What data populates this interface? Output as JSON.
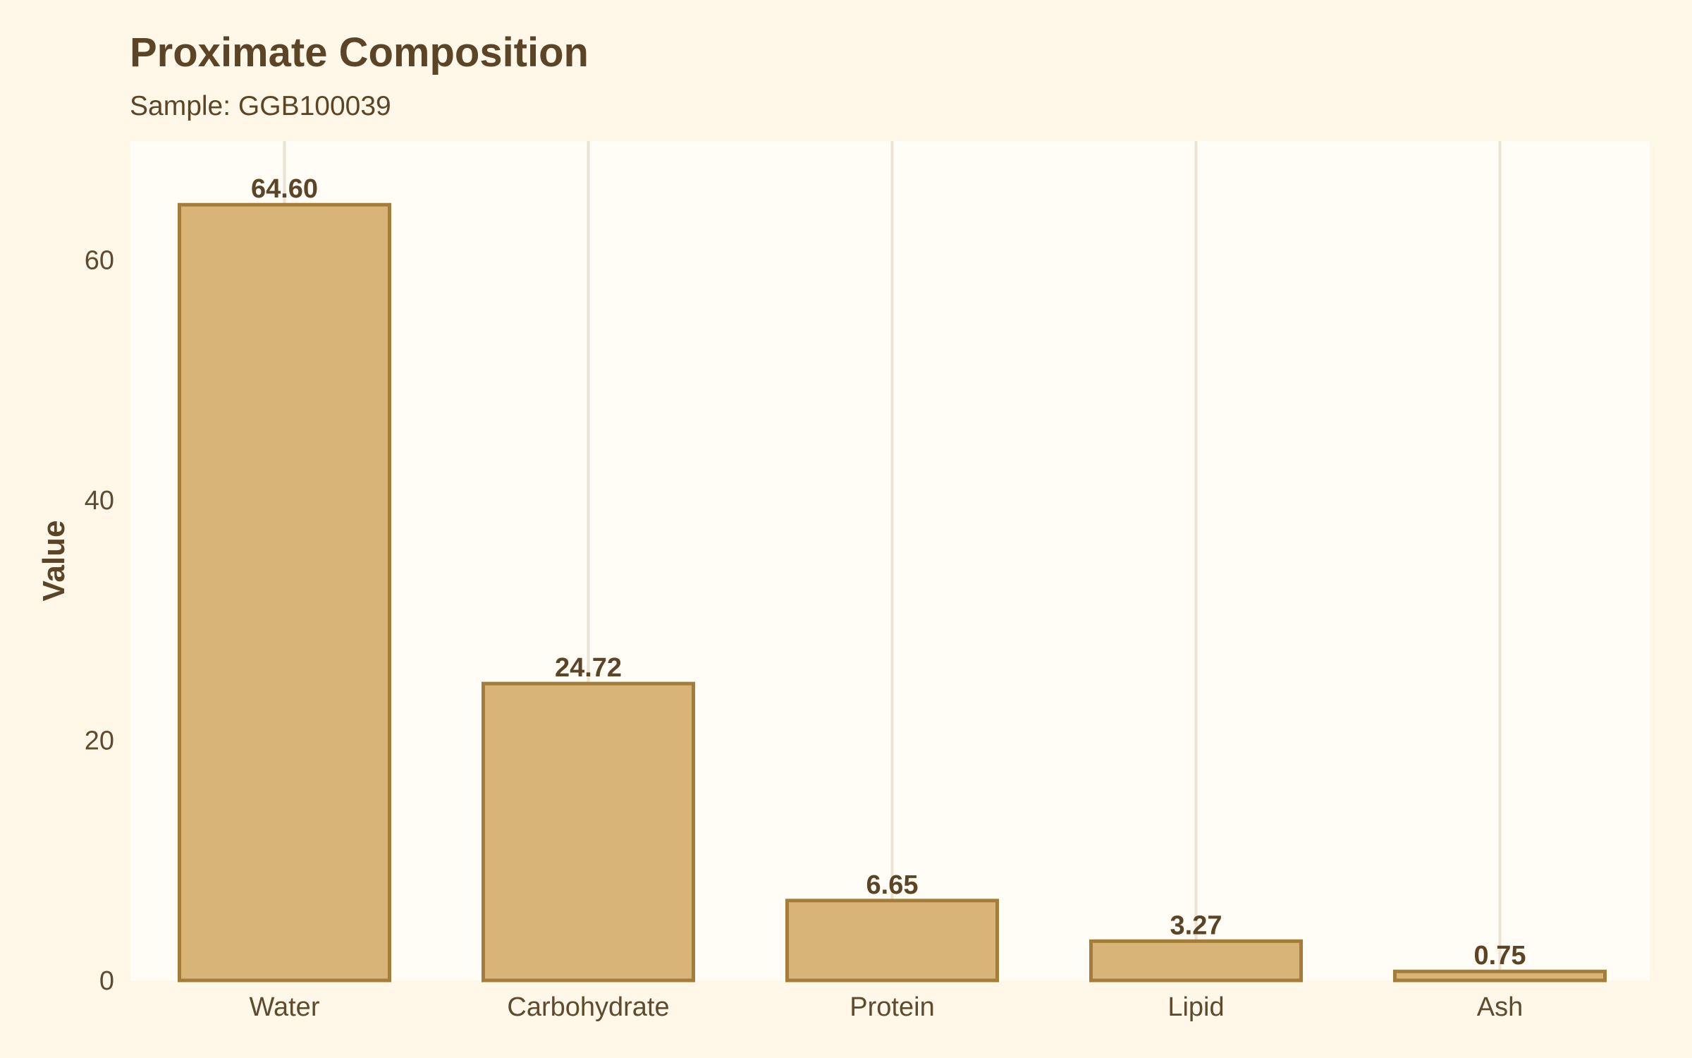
{
  "chart_data": {
    "type": "bar",
    "title": "Proximate Composition",
    "subtitle": "Sample: GGB100039",
    "xlabel": "",
    "ylabel": "Value",
    "categories": [
      "Water",
      "Carbohydrate",
      "Protein",
      "Lipid",
      "Ash"
    ],
    "values": [
      64.6,
      24.72,
      6.65,
      3.27,
      0.75
    ],
    "value_labels": [
      "64.60",
      "24.72",
      "6.65",
      "3.27",
      "0.75"
    ],
    "ylim": [
      0,
      69.9
    ],
    "yticks": [
      0,
      20,
      40,
      60
    ],
    "grid": "vertical",
    "legend": "none",
    "colors": {
      "background": "#fff7e8",
      "panel": "#fffdf6",
      "bar_fill": "#d9b478",
      "bar_stroke": "#a57c3a",
      "grid": "#ece3d2",
      "title": "#5b4526",
      "text": "#5b4526",
      "tick": "#5e4a2c"
    }
  }
}
